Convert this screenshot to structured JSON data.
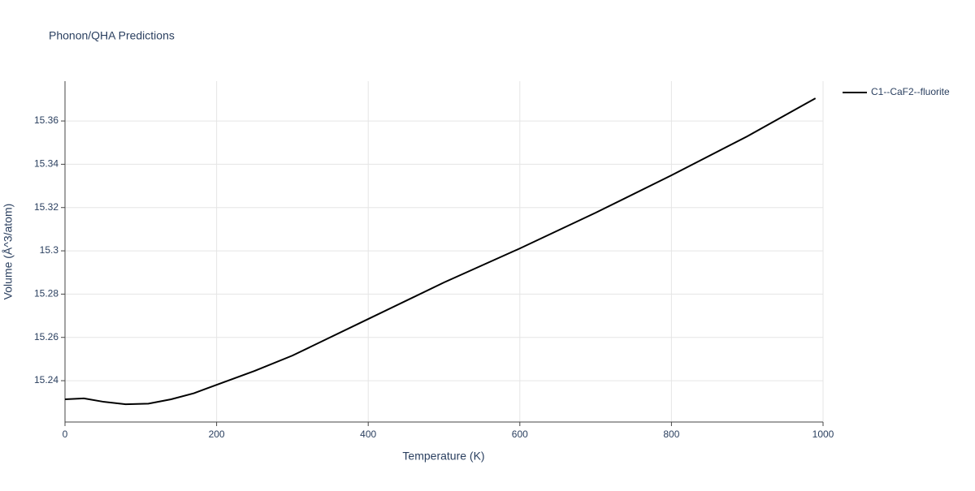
{
  "chart_data": {
    "type": "line",
    "title": "Phonon/QHA Predictions",
    "x_label": "Temperature (K)",
    "y_label": "Volume (Å^3/atom)",
    "x": [
      0,
      25,
      50,
      80,
      110,
      140,
      170,
      200,
      250,
      300,
      400,
      500,
      600,
      700,
      800,
      900,
      990
    ],
    "series": [
      {
        "name": "C1--CaF2--fluorite",
        "color": "#000000",
        "values": [
          15.2314,
          15.2318,
          15.2303,
          15.2291,
          15.2294,
          15.2314,
          15.2342,
          15.2381,
          15.2445,
          15.2516,
          15.2685,
          15.2854,
          15.3011,
          15.3176,
          15.3349,
          15.3529,
          15.3705
        ]
      }
    ],
    "xlim": [
      0,
      1000
    ],
    "xticks": [
      0,
      200,
      400,
      600,
      800,
      1000
    ],
    "ylim": [
      15.2209,
      15.3784
    ],
    "yticks": [
      15.24,
      15.26,
      15.28,
      15.3,
      15.32,
      15.34,
      15.36
    ],
    "grid": true,
    "legend": "right"
  }
}
